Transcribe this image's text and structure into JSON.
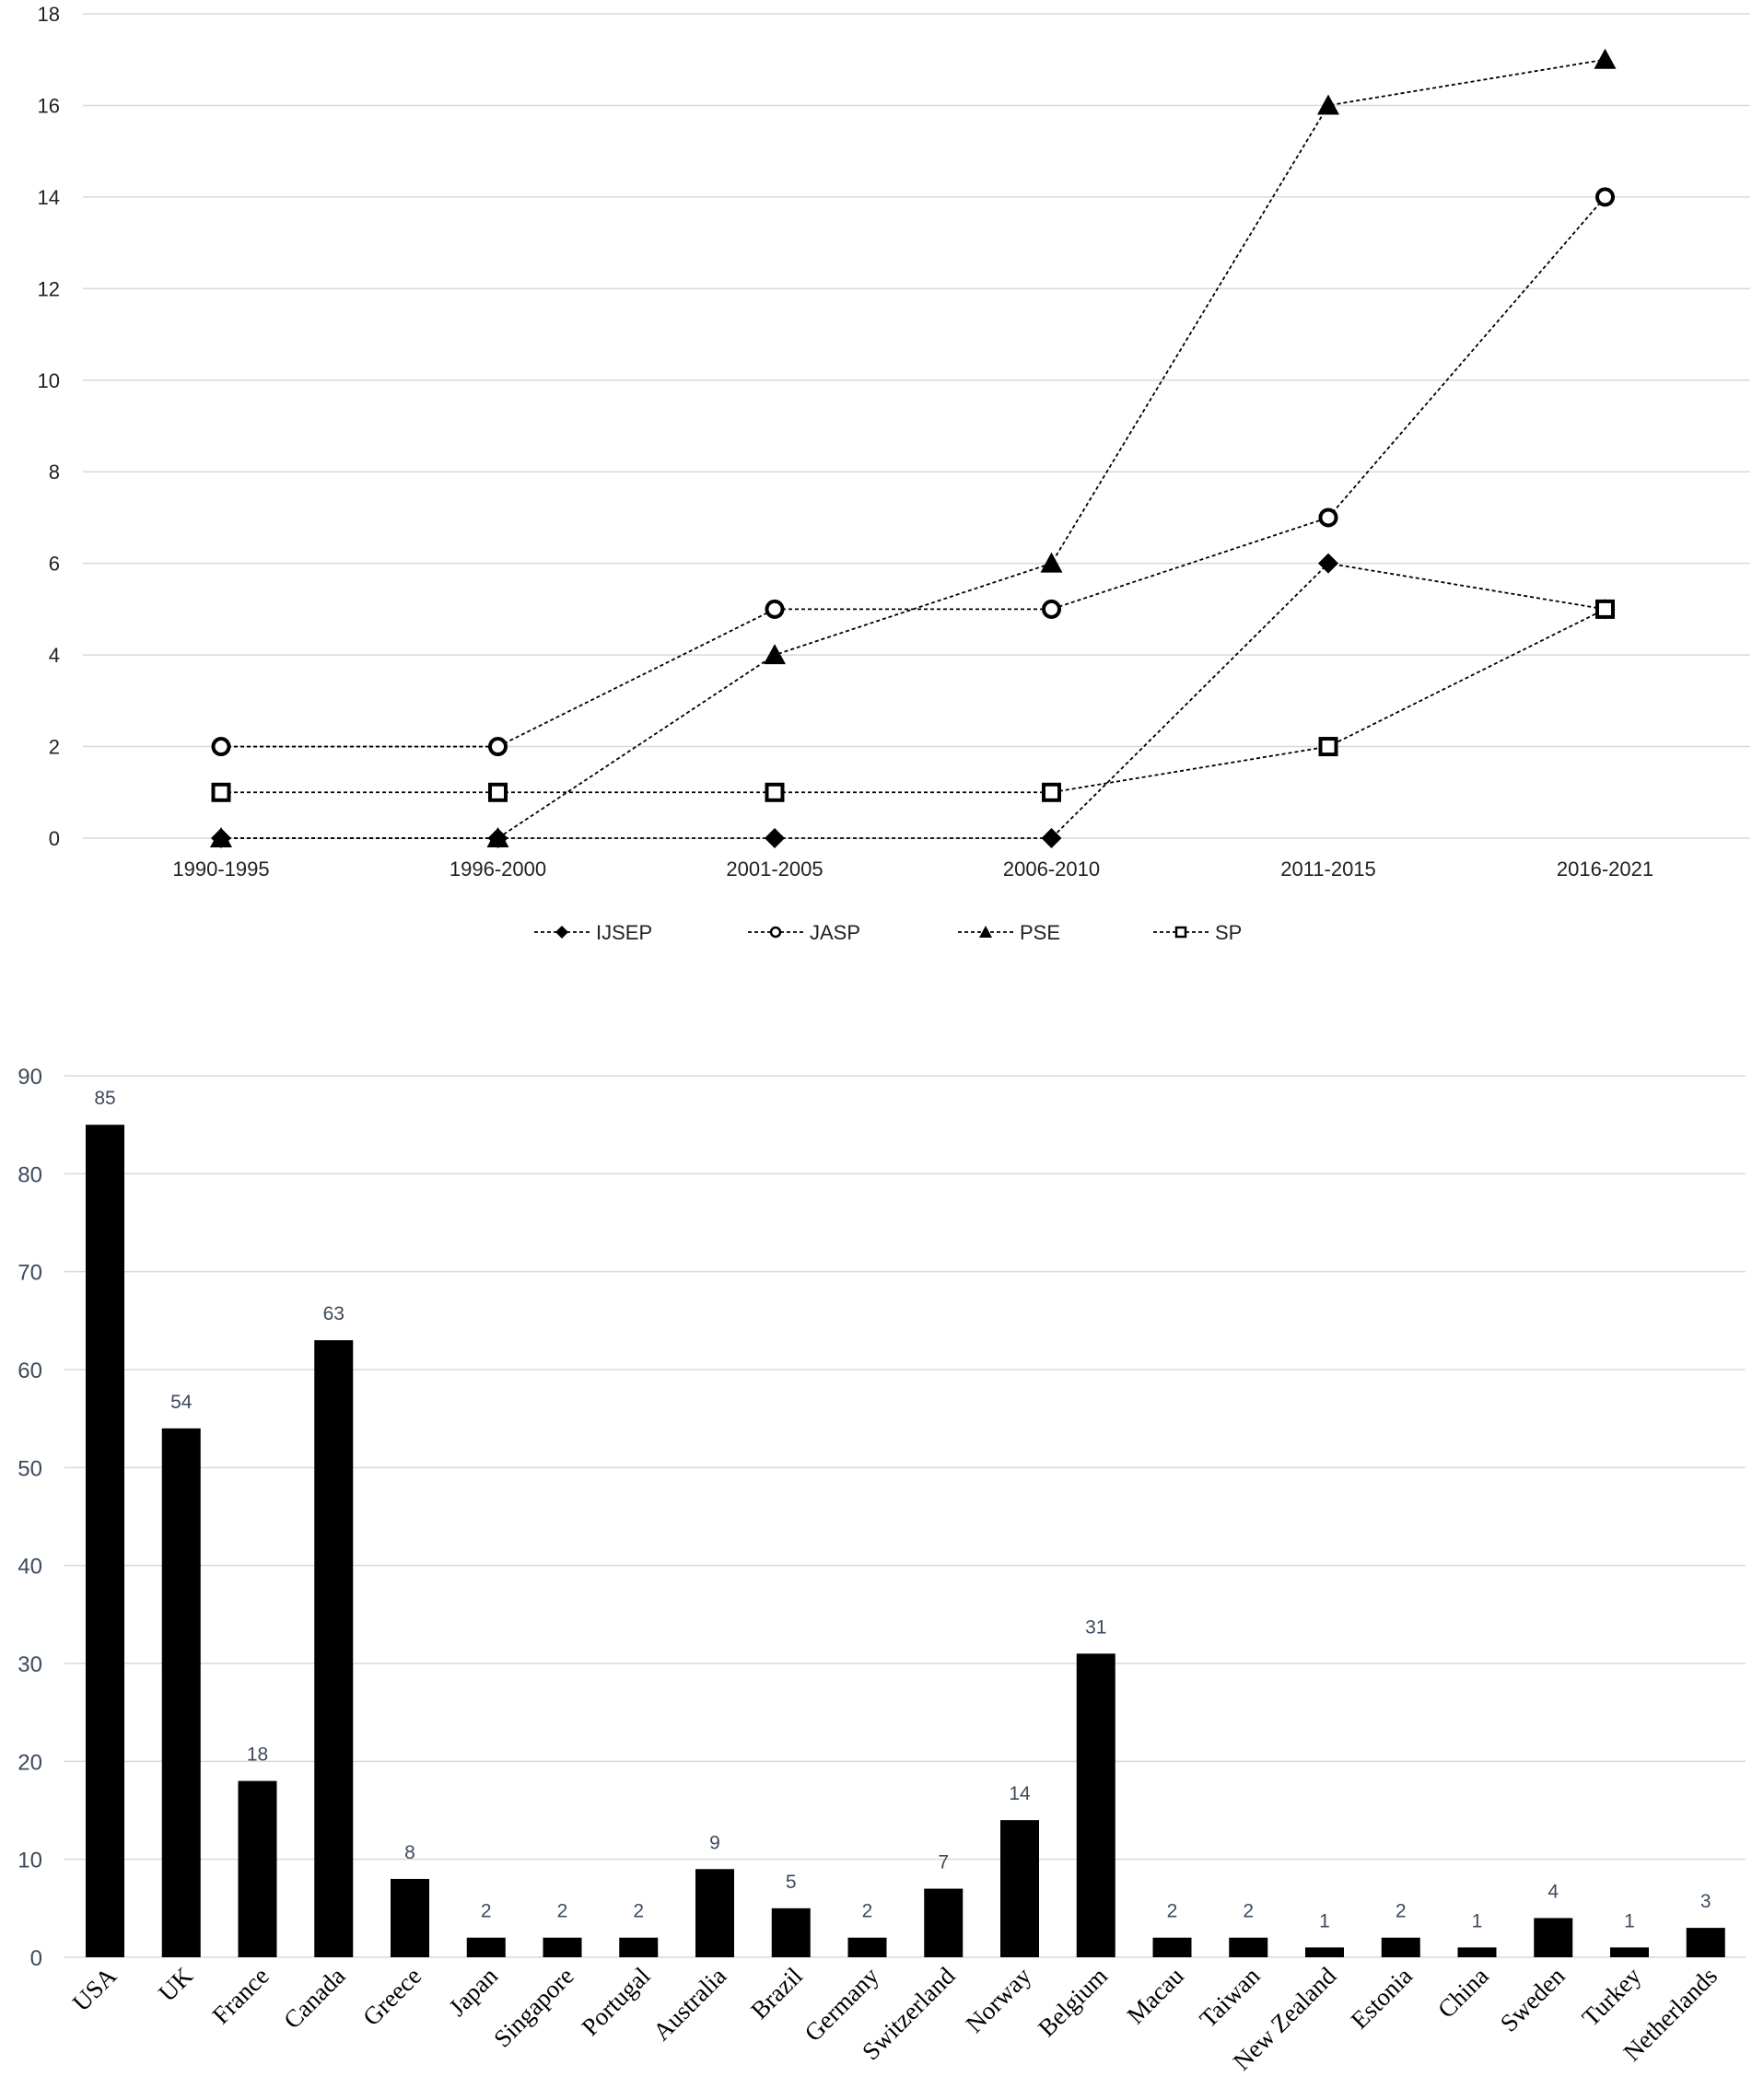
{
  "chart_data": [
    {
      "type": "line",
      "categories": [
        "1990-1995",
        "1996-2000",
        "2001-2005",
        "2006-2010",
        "2011-2015",
        "2016-2021"
      ],
      "series": [
        {
          "name": "IJSEP",
          "marker": "diamond",
          "values": [
            0,
            0,
            0,
            0,
            6,
            5
          ]
        },
        {
          "name": "JASP",
          "marker": "circle",
          "values": [
            2,
            2,
            5,
            5,
            7,
            14
          ]
        },
        {
          "name": "PSE",
          "marker": "triangle",
          "values": [
            0,
            0,
            4,
            6,
            16,
            17
          ]
        },
        {
          "name": "SP",
          "marker": "square",
          "values": [
            1,
            1,
            1,
            1,
            2,
            5
          ]
        }
      ],
      "ylim": [
        0,
        18
      ],
      "yticks": [
        0,
        2,
        4,
        6,
        8,
        10,
        12,
        14,
        16,
        18
      ],
      "grid": true,
      "legend": "bottom",
      "colors": {
        "line": "#000000",
        "grid": "#d9d9d9"
      }
    },
    {
      "type": "bar",
      "categories": [
        "USA",
        "UK",
        "France",
        "Canada",
        "Greece",
        "Japan",
        "Singapore",
        "Portugal",
        "Australia",
        "Brazil",
        "Germany",
        "Switzerland",
        "Norway",
        "Belgium",
        "Macau",
        "Taiwan",
        "New Zealand",
        "Estonia",
        "China",
        "Sweden",
        "Turkey",
        "Netherlands"
      ],
      "values": [
        85,
        54,
        18,
        63,
        8,
        2,
        2,
        2,
        9,
        5,
        2,
        7,
        14,
        31,
        2,
        2,
        1,
        2,
        1,
        4,
        1,
        3
      ],
      "ylim": [
        0,
        90
      ],
      "yticks": [
        0,
        10,
        20,
        30,
        40,
        50,
        60,
        70,
        80,
        90
      ],
      "grid": true,
      "data_labels": true,
      "colors": {
        "bar": "#000000",
        "grid": "#d9d9d9",
        "label": "#3d4a5c"
      }
    }
  ]
}
